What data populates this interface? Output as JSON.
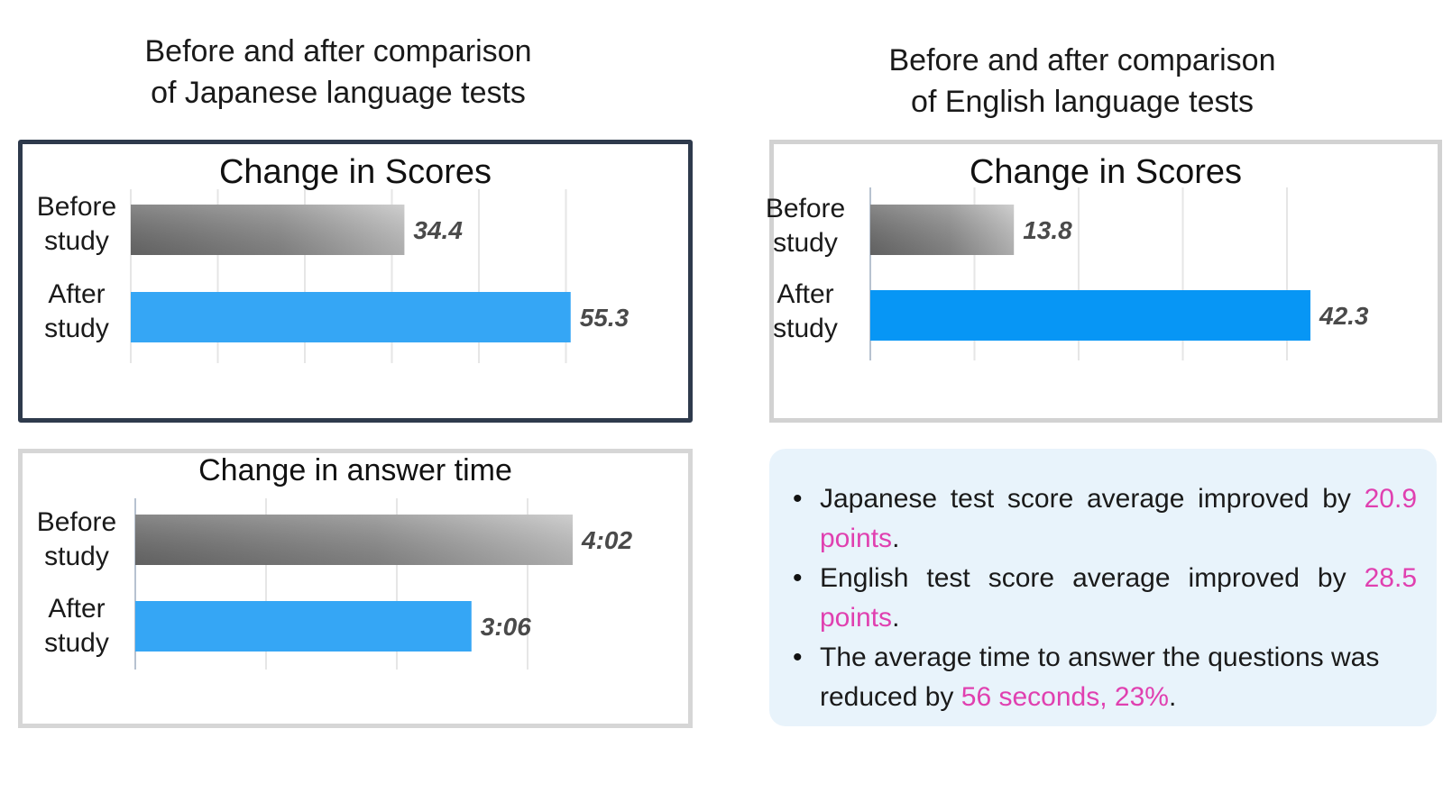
{
  "headings": {
    "japanese": "Before and after comparison\nof Japanese language tests",
    "english": "Before and after comparison\nof English language tests"
  },
  "colors": {
    "before_bar": "#8c8c8c",
    "after_bar": "#35a6f5",
    "after_bar_en": "#0796f5",
    "highlight": "#e040b0",
    "summary_bg": "#e8f3fb"
  },
  "chart_data": [
    {
      "id": "jp-scores",
      "type": "bar",
      "orientation": "horizontal",
      "title": "Change in Scores",
      "categories": [
        "Before study",
        "After study"
      ],
      "category_lines": [
        [
          "Before",
          "study"
        ],
        [
          "After",
          "study"
        ]
      ],
      "values": [
        34.4,
        55.3
      ],
      "labels": [
        "34.4",
        "55.3"
      ],
      "xlim": [
        0,
        60
      ],
      "grid": true
    },
    {
      "id": "jp-time",
      "type": "bar",
      "orientation": "horizontal",
      "title": "Change in answer time",
      "categories": [
        "Before study",
        "After study"
      ],
      "category_lines": [
        [
          "Before",
          "study"
        ],
        [
          "After",
          "study"
        ]
      ],
      "values": [
        242,
        186
      ],
      "labels": [
        "4:02",
        "3:06"
      ],
      "unit": "seconds",
      "xlim": [
        0,
        300
      ],
      "grid": true
    },
    {
      "id": "en-scores",
      "type": "bar",
      "orientation": "horizontal",
      "title": "Change in Scores",
      "categories": [
        "Before study",
        "After study"
      ],
      "category_lines": [
        [
          "Before",
          "study"
        ],
        [
          "After",
          "study"
        ]
      ],
      "values": [
        13.8,
        42.3
      ],
      "labels": [
        "13.8",
        "42.3"
      ],
      "xlim": [
        0,
        50
      ],
      "grid": true
    }
  ],
  "summary": {
    "items": [
      {
        "pre": "Japanese test score average improved by ",
        "hl": "20.9 points",
        "post": "."
      },
      {
        "pre": "English test score average improved  by ",
        "hl": "28.5 points",
        "post": "."
      },
      {
        "pre": "The average time to answer the questions was reduced by ",
        "hl": "56 seconds, 23%",
        "post": "."
      }
    ]
  }
}
